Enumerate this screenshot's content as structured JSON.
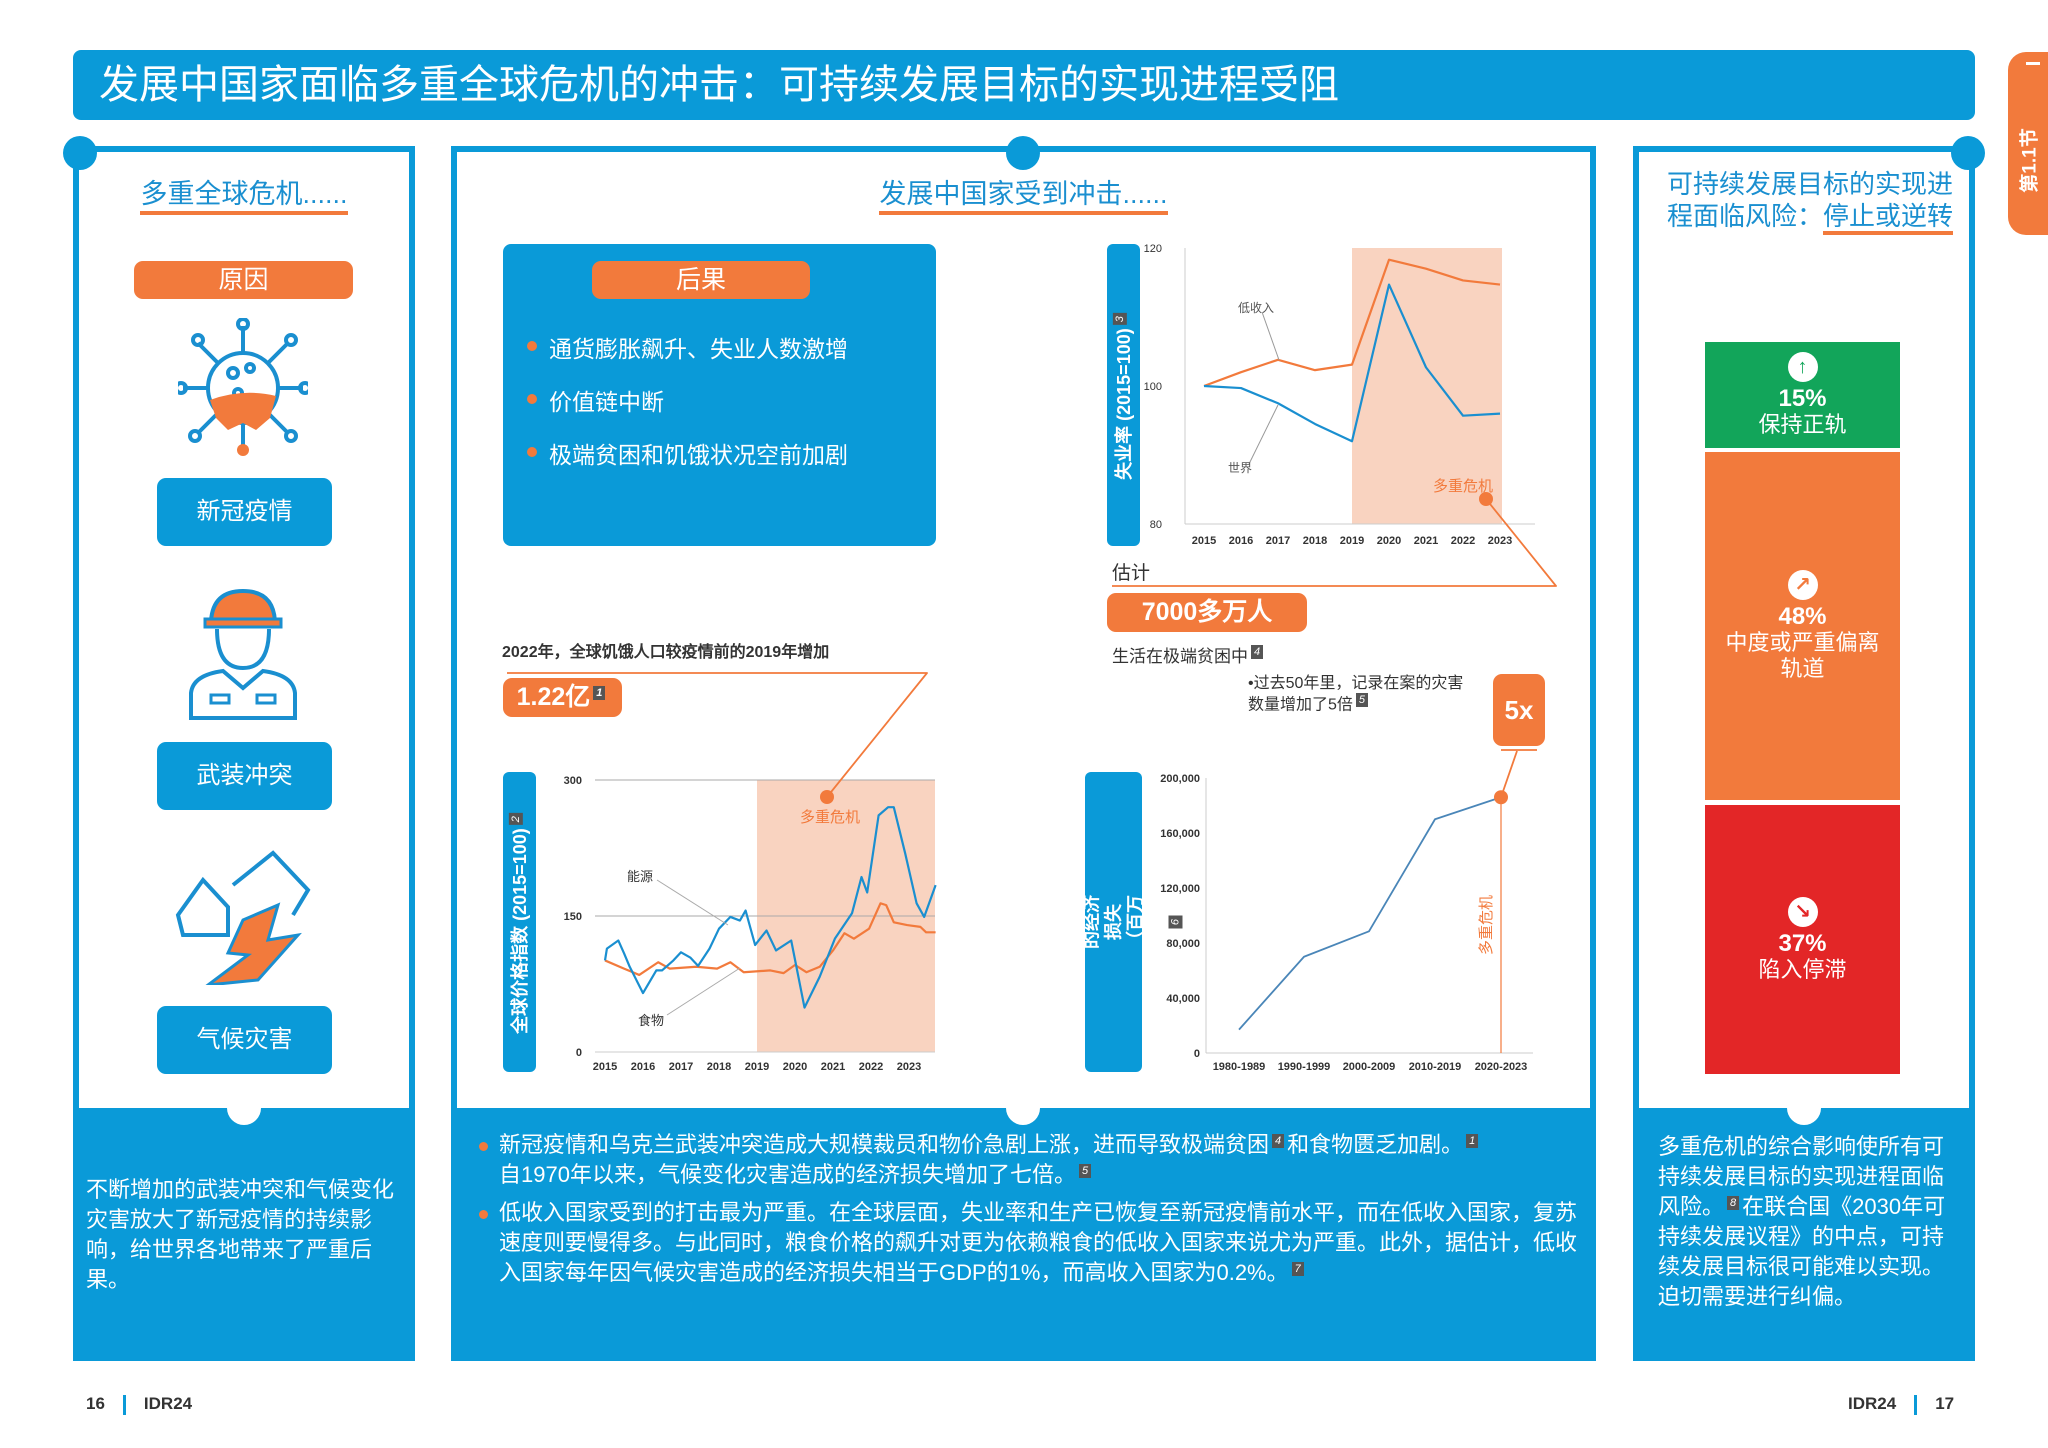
{
  "header": {
    "title": "发展中国家面临多重全球危机的冲击：可持续发展目标的实现进程受阻"
  },
  "section_tab": "第1.1节",
  "colors": {
    "blue": "#0a9ad8",
    "orange": "#f27a3c",
    "green": "#12a55a",
    "red": "#e32627"
  },
  "left": {
    "heading": "多重全球危机......",
    "cause_label": "原因",
    "causes": [
      {
        "label": "新冠疫情",
        "icon": "virus-icon"
      },
      {
        "label": "武装冲突",
        "icon": "worker-icon"
      },
      {
        "label": "气候灾害",
        "icon": "disaster-house-icon"
      }
    ],
    "summary": "不断增加的武装冲突和气候变化灾害放大了新冠疫情的持续影响，给世界各地带来了严重后果。"
  },
  "middle": {
    "heading": "发展中国家受到冲击......",
    "consequences": {
      "label": "后果",
      "items": [
        "通货膨胀飙升、失业人数激增",
        "价值链中断",
        "极端贫困和饥饿状况空前加剧"
      ]
    },
    "poverty": {
      "estimate_label": "估计",
      "value": "7000多万人",
      "caption": "生活在极端贫困中",
      "footnote": "4"
    },
    "hunger": {
      "caption": "2022年，全球饥饿人口较疫情前的2019年增加",
      "value": "1.22亿",
      "footnote": "1"
    },
    "disaster_note": {
      "text_line1": "•过去50年里，记录在案的灾害",
      "text_line2": "数量增加了5倍",
      "footnote": "5",
      "value": "5x"
    },
    "bullets": [
      {
        "parts": [
          "新冠疫情和乌克兰武装冲突造成大规模裁员和物价急剧上涨，进而导致极端贫困",
          "和食物匮乏加剧。",
          "自1970年以来，气候变化灾害造成的经济损失增加了七倍。"
        ],
        "footnotes": [
          "4",
          "1",
          "5"
        ]
      },
      {
        "parts": [
          "低收入国家受到的打击最为严重。在全球层面，失业率和生产已恢复至新冠疫情前水平，而在低收入国家，复苏速度则要慢得多。与此同时，粮食价格的飙升对更为依赖粮食的低收入国家来说尤为严重。此外，据估计，低收入国家每年因气候灾害造成的经济损失相当于GDP的1%，而高收入国家为0.2%。"
        ],
        "footnotes": [
          "7"
        ]
      }
    ]
  },
  "right": {
    "heading_line1": "可持续发展目标的实现进",
    "heading_line2_prefix": "程面临风险：",
    "heading_line2_highlight": "停止或逆转",
    "segments": [
      {
        "pct": "15%",
        "label": "保持正轨",
        "value": 15,
        "color": "#12a55a",
        "icon": "arrow-up-icon"
      },
      {
        "pct": "48%",
        "label": "中度或严重偏离轨道",
        "value": 48,
        "color": "#f27a3c",
        "icon": "arrow-diagonal-icon"
      },
      {
        "pct": "37%",
        "label": "陷入停滞",
        "value": 37,
        "color": "#e32627",
        "icon": "arrow-down-right-icon"
      }
    ],
    "summary": "多重危机的综合影响使所有可持续发展目标的实现进程面临风险。",
    "summary_footnote": "8",
    "summary_rest": "在联合国《2030年可持续发展议程》的中点，可持续发展目标很可能难以实现。迫切需要进行纠偏。"
  },
  "footer": {
    "left_page": "16",
    "left_label": "IDR24",
    "right_label": "IDR24",
    "right_page": "17"
  },
  "chart_data": [
    {
      "type": "line",
      "ylabel": "失业率 (2015=100)",
      "ylabel_footnote": "3",
      "x": [
        2015,
        2016,
        2017,
        2018,
        2019,
        2020,
        2021,
        2022,
        2023
      ],
      "xticks": [
        "2015",
        "2016",
        "2017",
        "2018",
        "2019",
        "2020",
        "2021",
        "2022",
        "2023"
      ],
      "yticks": [
        "80",
        "100",
        "120"
      ],
      "ylim": [
        80,
        120
      ],
      "series": [
        {
          "name": "低收入",
          "color": "#f27a3c",
          "values": [
            100,
            102,
            103.8,
            102.3,
            103.1,
            118.3,
            117,
            115.3,
            114.7
          ]
        },
        {
          "name": "世界",
          "color": "#1a8fd0",
          "values": [
            100,
            99.7,
            97.5,
            94.5,
            92,
            114.7,
            102.7,
            95.7,
            96
          ]
        }
      ],
      "shaded": {
        "label": "多重危机",
        "from": 2019,
        "to": 2023
      }
    },
    {
      "type": "line",
      "ylabel": "全球价格指数 (2015=100)",
      "ylabel_footnote": "2",
      "xticks": [
        "2015",
        "2016",
        "2017",
        "2018",
        "2019",
        "2020",
        "2021",
        "2022",
        "2023"
      ],
      "yticks": [
        "0",
        "150",
        "300"
      ],
      "ylim": [
        0,
        300
      ],
      "grid": true,
      "series": [
        {
          "name": "能源",
          "color": "#1a8fd0",
          "x": [
            2015,
            2015.05,
            2015.35,
            2015.5,
            2015.65,
            2016,
            2016.35,
            2016.5,
            2016.8,
            2017,
            2017.25,
            2017.45,
            2017.75,
            2018,
            2018.3,
            2018.55,
            2018.7,
            2018.95,
            2019.25,
            2019.5,
            2019.9,
            2020.25,
            2020.65,
            2021.05,
            2021.5,
            2021.75,
            2021.9,
            2022.2,
            2022.45,
            2022.6,
            2022.9,
            2023.2,
            2023.4,
            2023.7
          ],
          "values": [
            101,
            114,
            123,
            109,
            94,
            65,
            90,
            90,
            101,
            110,
            104,
            95,
            114,
            136,
            149,
            145,
            156,
            118,
            134,
            112,
            123,
            49,
            83,
            125,
            153,
            193,
            176,
            261,
            270,
            270,
            219,
            164,
            149,
            184
          ]
        },
        {
          "name": "食物",
          "color": "#f27a3c",
          "x": [
            2015,
            2015.5,
            2015.9,
            2016.4,
            2016.7,
            2017.4,
            2017.95,
            2018.3,
            2018.65,
            2019.35,
            2019.7,
            2020,
            2020.3,
            2020.65,
            2021,
            2021.3,
            2021.55,
            2021.95,
            2022.25,
            2022.4,
            2022.6,
            2022.95,
            2023.3,
            2023.45,
            2023.7
          ],
          "values": [
            101,
            92,
            85,
            99,
            92,
            94,
            92,
            99,
            88,
            90,
            87,
            96,
            88,
            94,
            112,
            131,
            125,
            136,
            164,
            162,
            143,
            140,
            138,
            132,
            132
          ]
        }
      ],
      "shaded": {
        "label": "多重危机",
        "from": 2019,
        "to": 2023.7
      }
    },
    {
      "type": "line",
      "ylabel": "自然灾害造成的经济损失（百万美元）",
      "ylabel_footnote": "6",
      "categories": [
        "1980-1989",
        "1990-1999",
        "2000-2009",
        "2010-2019",
        "2020-2023"
      ],
      "yticks": [
        "0",
        "40,000",
        "80,000",
        "120,000",
        "160,000",
        "200,000"
      ],
      "ylim": [
        0,
        200000
      ],
      "series": [
        {
          "color": "#4a86b8",
          "values": [
            17000,
            70000,
            88500,
            170000,
            186000
          ]
        }
      ],
      "marker": {
        "label": "多重危机",
        "category": "2020-2023"
      }
    }
  ]
}
